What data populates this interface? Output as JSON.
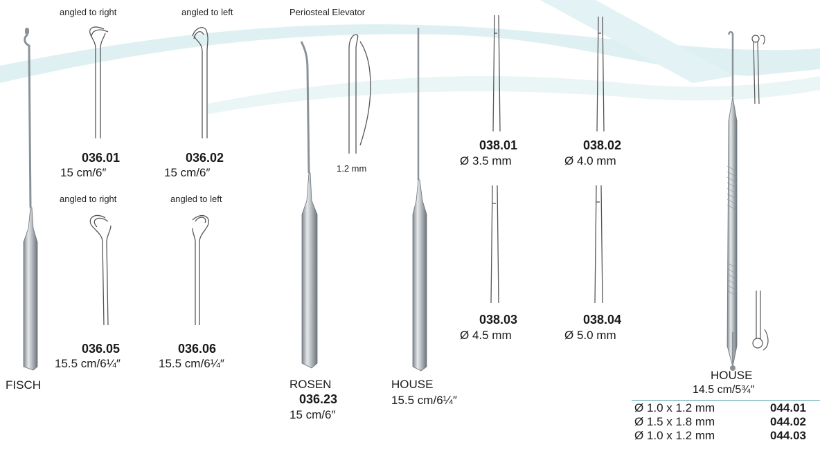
{
  "colors": {
    "wave": "#dff0f2",
    "steel": "#9ca3a8",
    "steel_dark": "#6f767b",
    "table_rule": "#5aa7b2"
  },
  "captions": {
    "angled_right_top": "angled to right",
    "angled_left_top": "angled to left",
    "periosteal": "Periosteal Elevator",
    "angled_right_bottom": "angled to right",
    "angled_left_bottom": "angled to left"
  },
  "items": {
    "i03601": {
      "code": "036.01",
      "size": "15 cm/6″"
    },
    "i03602": {
      "code": "036.02",
      "size": "15 cm/6″"
    },
    "i03605": {
      "code": "036.05",
      "size": "15.5 cm/6¼″"
    },
    "i03606": {
      "code": "036.06",
      "size": "15.5 cm/6¼″"
    },
    "fisch": {
      "name": "FISCH"
    },
    "rosen": {
      "name": "ROSEN",
      "code": "036.23",
      "size": "15 cm/6″",
      "tip": "1.2 mm"
    },
    "house_mid": {
      "name": "HOUSE",
      "size": "15.5 cm/6¼″"
    },
    "i03801": {
      "code": "038.01",
      "size": "Ø 3.5 mm"
    },
    "i03802": {
      "code": "038.02",
      "size": "Ø 4.0 mm"
    },
    "i03803": {
      "code": "038.03",
      "size": "Ø 4.5 mm"
    },
    "i03804": {
      "code": "038.04",
      "size": "Ø 5.0 mm"
    },
    "house_right": {
      "name": "HOUSE",
      "size": "14.5 cm/5¾″"
    }
  },
  "house_table": [
    {
      "dim": "Ø 1.0 x 1.2 mm",
      "code": "044.01"
    },
    {
      "dim": "Ø 1.5 x 1.8 mm",
      "code": "044.02"
    },
    {
      "dim": "Ø 1.0 x 1.2 mm",
      "code": "044.03"
    }
  ]
}
